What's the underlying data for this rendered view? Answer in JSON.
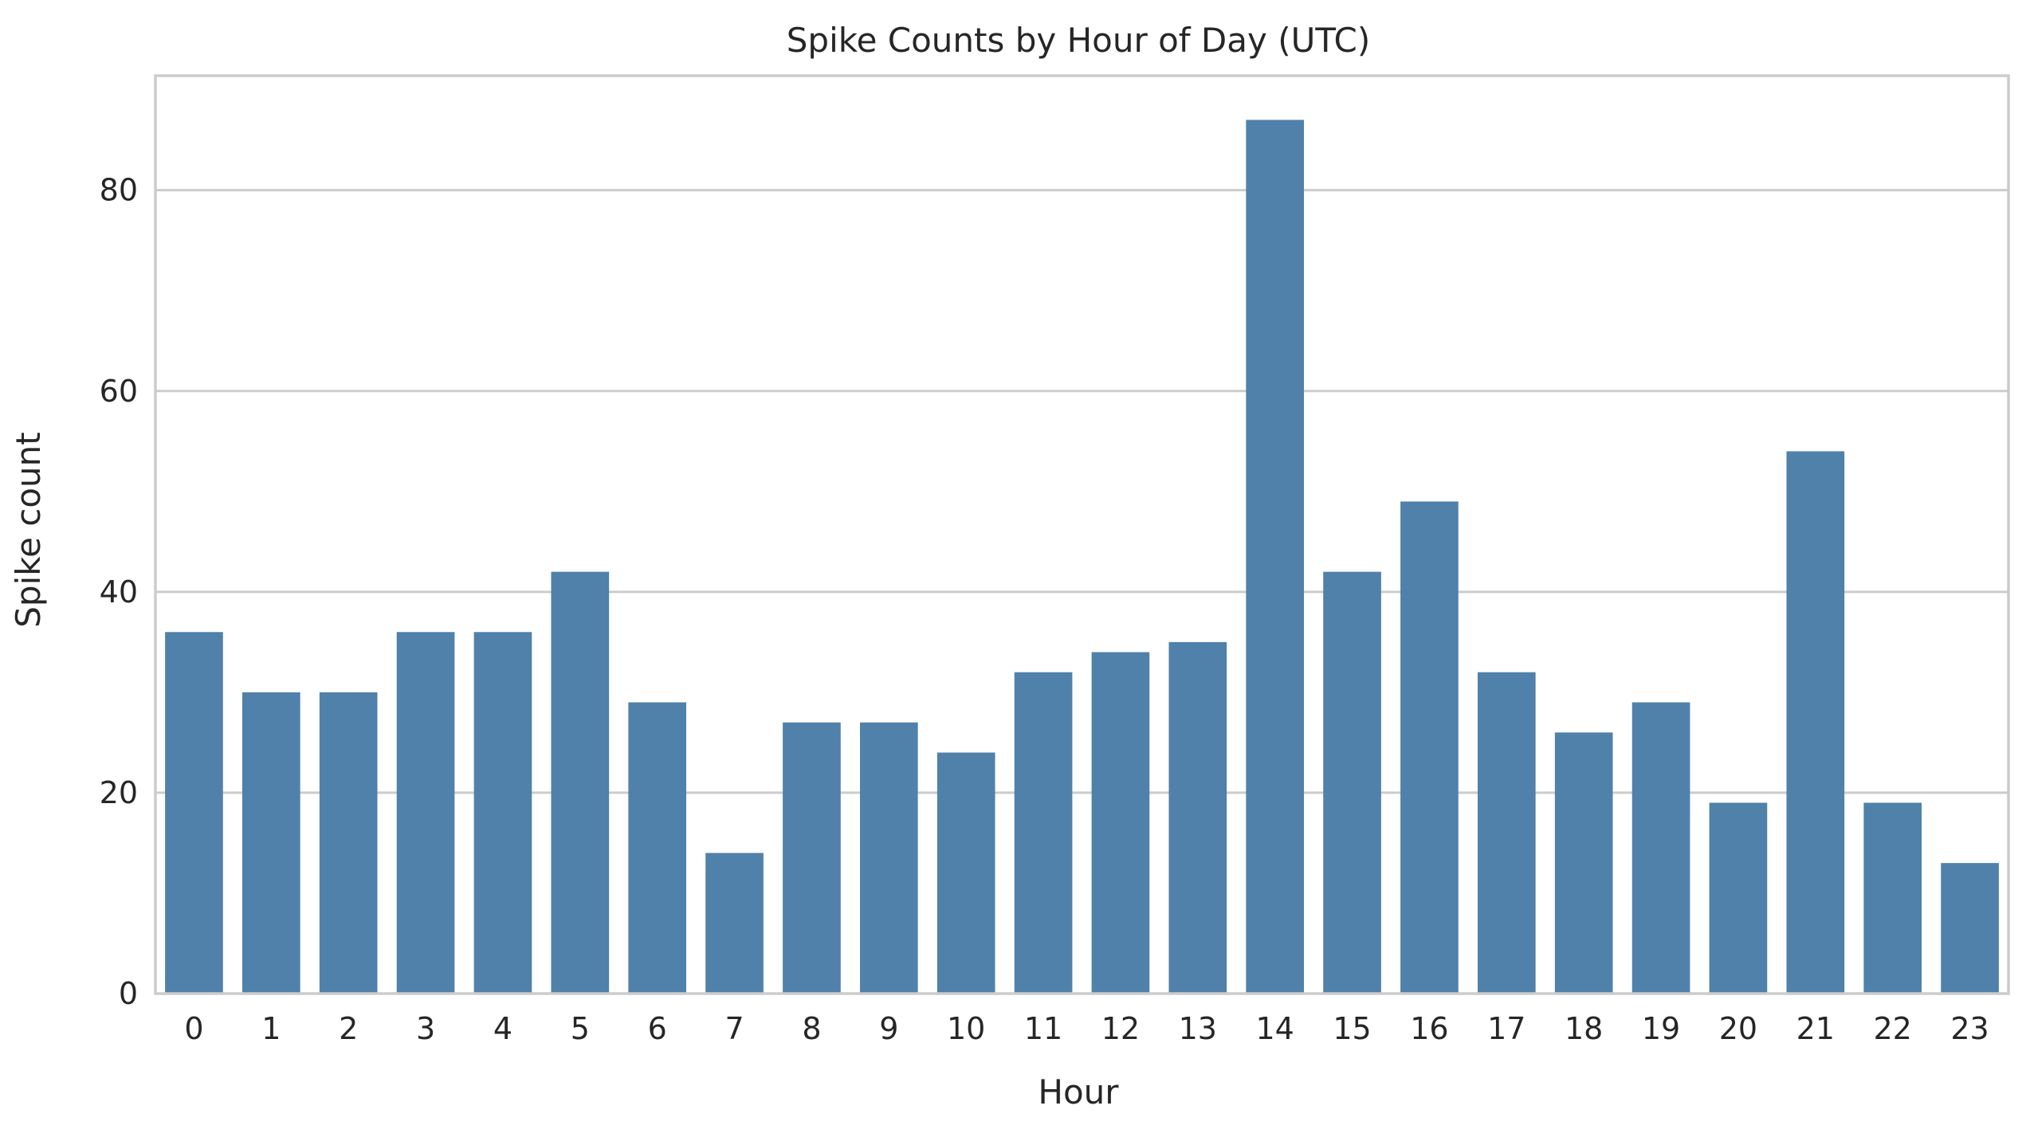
{
  "chart_data": {
    "type": "bar",
    "title": "Spike Counts by Hour of Day (UTC)",
    "xlabel": "Hour",
    "ylabel": "Spike count",
    "categories": [
      "0",
      "1",
      "2",
      "3",
      "4",
      "5",
      "6",
      "7",
      "8",
      "9",
      "10",
      "11",
      "12",
      "13",
      "14",
      "15",
      "16",
      "17",
      "18",
      "19",
      "20",
      "21",
      "22",
      "23"
    ],
    "values": [
      36,
      30,
      30,
      36,
      36,
      42,
      29,
      14,
      27,
      27,
      24,
      32,
      34,
      35,
      87,
      42,
      49,
      32,
      26,
      29,
      19,
      54,
      19,
      13
    ],
    "ylim": [
      0,
      91.4
    ],
    "yticks": [
      0,
      20,
      40,
      60,
      80
    ],
    "grid": "horizontal",
    "bar_color": "#4f81aa",
    "grid_color": "#cccccc",
    "text_color": "#262626"
  }
}
